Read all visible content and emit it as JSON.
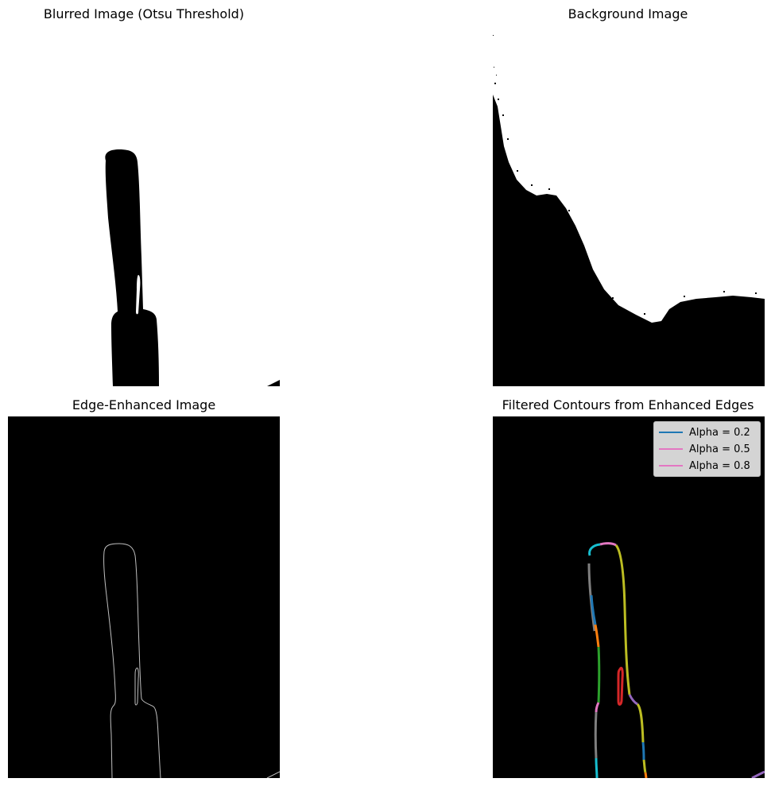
{
  "panels": {
    "top_left": {
      "title": "Blurred Image (Otsu Threshold)"
    },
    "top_right": {
      "title": "Background Image"
    },
    "bottom_left": {
      "title": "Edge-Enhanced Image"
    },
    "bottom_right": {
      "title": "Filtered Contours from Enhanced Edges",
      "legend": [
        {
          "label": "Alpha = 0.2",
          "color": "#1f77b4"
        },
        {
          "label": "Alpha = 0.5",
          "color": "#e377c2"
        },
        {
          "label": "Alpha = 0.8",
          "color": "#e377c2"
        }
      ]
    }
  },
  "colors": {
    "background": "#ffffff",
    "image_black": "#000000",
    "edge_gray": "#bfbfbf",
    "contour_colors": [
      "#1f77b4",
      "#ff7f0e",
      "#2ca02c",
      "#d62728",
      "#9467bd",
      "#8c564b",
      "#e377c2",
      "#7f7f7f",
      "#bcbd22",
      "#17becf"
    ]
  }
}
